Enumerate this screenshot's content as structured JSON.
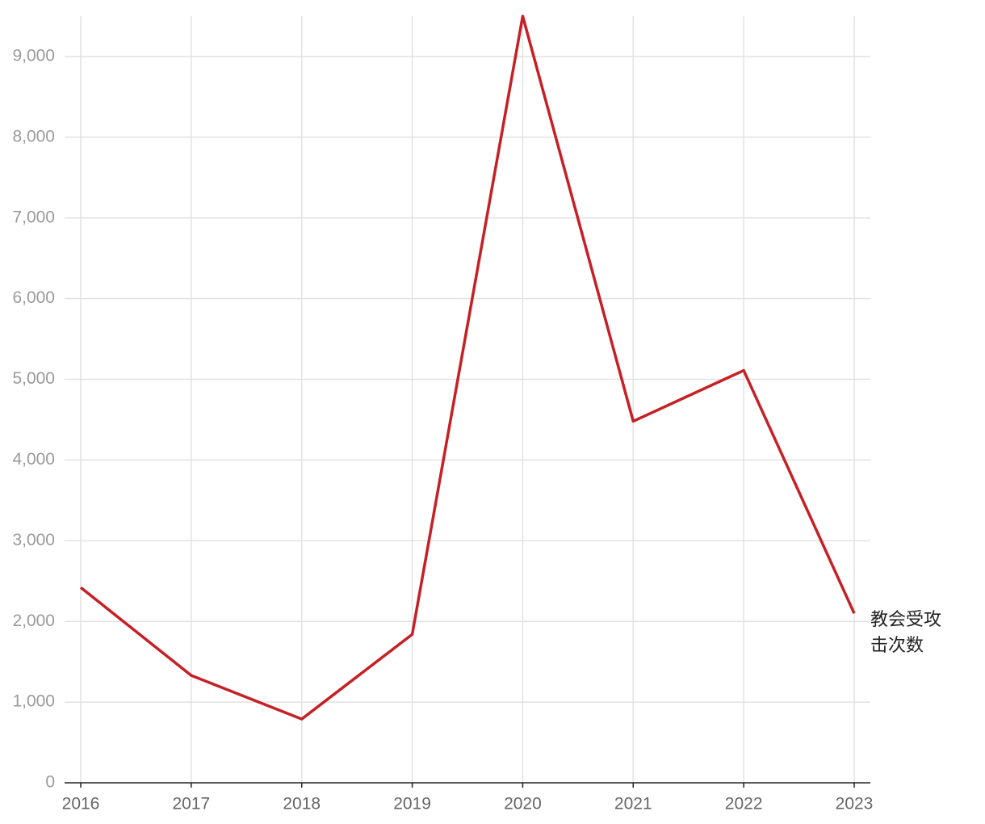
{
  "chart_data": {
    "type": "line",
    "x": [
      2016,
      2017,
      2018,
      2019,
      2020,
      2021,
      2022,
      2023
    ],
    "xlim": [
      2016,
      2023
    ],
    "xticks": [
      2016,
      2017,
      2018,
      2019,
      2020,
      2021,
      2022,
      2023
    ],
    "series": [
      {
        "name": "教会受攻击次数",
        "color": "#c62026",
        "values": [
          2420,
          1330,
          790,
          1840,
          9500,
          4480,
          5110,
          2100
        ]
      }
    ],
    "ylim": [
      0,
      9500
    ],
    "yticks": [
      0,
      {
        "value": 1000,
        "label": "1,000"
      },
      {
        "value": 2000,
        "label": "2,000"
      },
      {
        "value": 3000,
        "label": "3,000"
      },
      {
        "value": 4000,
        "label": "4,000"
      },
      {
        "value": 5000,
        "label": "5,000"
      },
      {
        "value": 6000,
        "label": "6,000"
      },
      {
        "value": 7000,
        "label": "7,000"
      },
      {
        "value": 8000,
        "label": "8,000"
      },
      {
        "value": 9000,
        "label": "9,000"
      }
    ],
    "grid": true
  }
}
